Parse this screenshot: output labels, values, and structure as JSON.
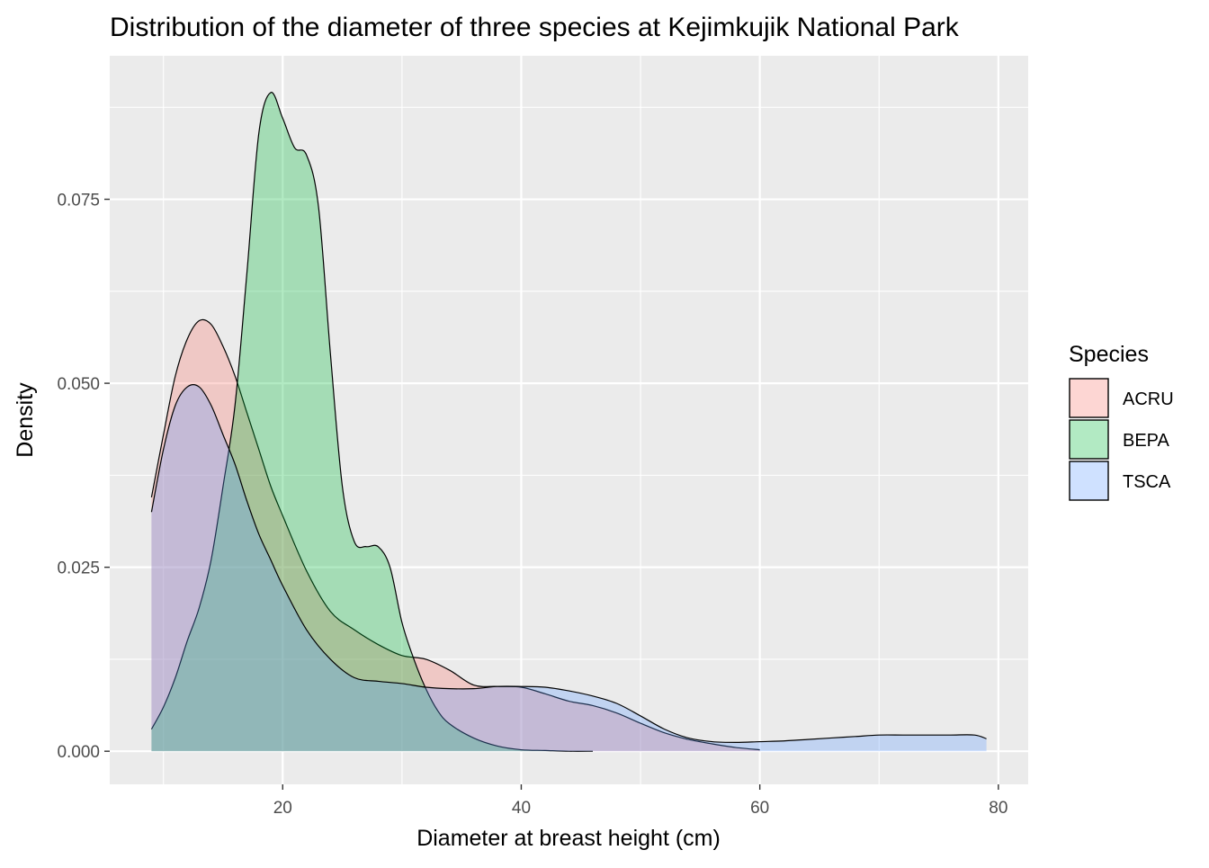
{
  "chart_data": {
    "type": "area",
    "title": "Distribution of the diameter of three species at Kejimkujik National Park",
    "xlabel": "Diameter at breast height (cm)",
    "ylabel": "Density",
    "xlim": [
      5.5,
      82.5
    ],
    "ylim": [
      -0.0045,
      0.0945
    ],
    "x_ticks": [
      20,
      40,
      60,
      80
    ],
    "x_tick_labels": [
      "20",
      "40",
      "60",
      "80"
    ],
    "x_minor_ticks": [
      10,
      30,
      50,
      70
    ],
    "y_ticks": [
      0,
      0.025,
      0.05,
      0.075
    ],
    "y_tick_labels": [
      "0.000",
      "0.025",
      "0.050",
      "0.075"
    ],
    "y_minor_ticks": [
      0.0125,
      0.0375,
      0.0625,
      0.0875
    ],
    "grid": true,
    "legend": {
      "title": "Species",
      "position": "right"
    },
    "series": [
      {
        "name": "ACRU",
        "color": "#F8766D",
        "x": [
          9,
          10,
          11,
          12,
          13,
          14,
          15,
          16,
          17,
          18,
          19,
          20,
          22,
          24,
          26,
          28,
          30,
          32,
          34,
          36,
          38,
          40,
          42,
          44,
          46,
          48,
          50,
          52,
          54,
          56,
          58,
          60
        ],
        "values": [
          0.0345,
          0.043,
          0.051,
          0.056,
          0.0585,
          0.058,
          0.055,
          0.051,
          0.046,
          0.041,
          0.036,
          0.032,
          0.0245,
          0.019,
          0.0165,
          0.0145,
          0.013,
          0.0125,
          0.011,
          0.009,
          0.0088,
          0.0087,
          0.0078,
          0.0068,
          0.0062,
          0.0052,
          0.0038,
          0.0025,
          0.0016,
          0.001,
          0.0005,
          0.0002
        ]
      },
      {
        "name": "BEPA",
        "color": "#00BA38",
        "x": [
          9,
          10,
          11,
          12,
          13,
          14,
          15,
          16,
          17,
          18,
          19,
          20,
          21,
          22,
          23,
          24,
          25,
          26,
          27,
          28,
          29,
          30,
          31,
          32,
          33,
          34,
          36,
          38,
          40,
          42,
          44,
          46
        ],
        "values": [
          0.003,
          0.006,
          0.01,
          0.015,
          0.0195,
          0.026,
          0.036,
          0.047,
          0.065,
          0.084,
          0.0895,
          0.086,
          0.082,
          0.081,
          0.074,
          0.054,
          0.036,
          0.0285,
          0.0278,
          0.0278,
          0.025,
          0.0175,
          0.0125,
          0.0085,
          0.0055,
          0.0037,
          0.0018,
          0.0007,
          0.0002,
          0.0001,
          0.0,
          0.0
        ]
      },
      {
        "name": "TSCA",
        "color": "#619CFF",
        "x": [
          9,
          10,
          11,
          12,
          13,
          14,
          15,
          16,
          17,
          18,
          19,
          20,
          22,
          24,
          26,
          28,
          30,
          32,
          34,
          36,
          38,
          40,
          42,
          44,
          46,
          48,
          50,
          52,
          54,
          56,
          58,
          60,
          62,
          64,
          66,
          68,
          70,
          72,
          74,
          76,
          78,
          79
        ],
        "values": [
          0.0325,
          0.041,
          0.047,
          0.0495,
          0.0495,
          0.047,
          0.043,
          0.039,
          0.034,
          0.0295,
          0.026,
          0.0225,
          0.0165,
          0.0125,
          0.01,
          0.0095,
          0.0092,
          0.0087,
          0.0085,
          0.0085,
          0.0088,
          0.0088,
          0.0087,
          0.0082,
          0.0075,
          0.0065,
          0.0048,
          0.003,
          0.0018,
          0.0013,
          0.0012,
          0.0013,
          0.0014,
          0.0016,
          0.0018,
          0.002,
          0.0022,
          0.0022,
          0.0022,
          0.0022,
          0.0022,
          0.0017
        ]
      }
    ]
  }
}
